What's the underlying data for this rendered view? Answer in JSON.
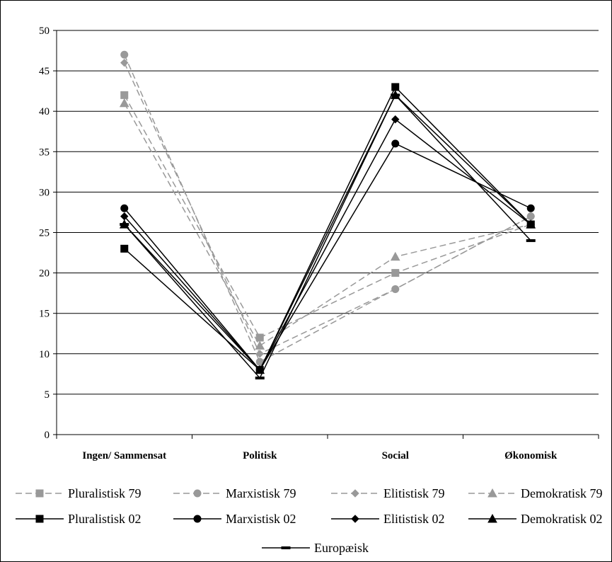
{
  "chart_data": {
    "type": "line",
    "categories": [
      "Ingen/ Sammensat",
      "Politisk",
      "Social",
      "Økonomisk"
    ],
    "ylim": [
      0,
      50
    ],
    "yticks": [
      0,
      5,
      10,
      15,
      20,
      25,
      30,
      35,
      40,
      45,
      50
    ],
    "grid": true,
    "legend_position": "bottom",
    "series": [
      {
        "name": "Pluralistisk 79",
        "values": [
          42,
          12,
          20,
          26
        ],
        "style": "dashed",
        "color": "#999999",
        "marker": "square"
      },
      {
        "name": "Marxistisk 79",
        "values": [
          47,
          9,
          18,
          27
        ],
        "style": "dashed",
        "color": "#999999",
        "marker": "circle"
      },
      {
        "name": "Elitistisk 79",
        "values": [
          46,
          10,
          18,
          27
        ],
        "style": "dashed",
        "color": "#999999",
        "marker": "diamond"
      },
      {
        "name": "Demokratisk 79",
        "values": [
          41,
          11,
          22,
          26
        ],
        "style": "dashed",
        "color": "#999999",
        "marker": "triangle"
      },
      {
        "name": "Pluralistisk 02",
        "values": [
          23,
          8,
          43,
          26
        ],
        "style": "solid",
        "color": "#000000",
        "marker": "square"
      },
      {
        "name": "Marxistisk 02",
        "values": [
          28,
          8,
          36,
          28
        ],
        "style": "solid",
        "color": "#000000",
        "marker": "circle"
      },
      {
        "name": "Elitistisk 02",
        "values": [
          27,
          8,
          39,
          26
        ],
        "style": "solid",
        "color": "#000000",
        "marker": "diamond"
      },
      {
        "name": "Demokratisk 02",
        "values": [
          26,
          8,
          42,
          26
        ],
        "style": "solid",
        "color": "#000000",
        "marker": "triangle"
      },
      {
        "name": "Europæisk",
        "values": [
          26,
          7,
          42,
          24
        ],
        "style": "solid",
        "color": "#000000",
        "marker": "dash"
      }
    ]
  }
}
